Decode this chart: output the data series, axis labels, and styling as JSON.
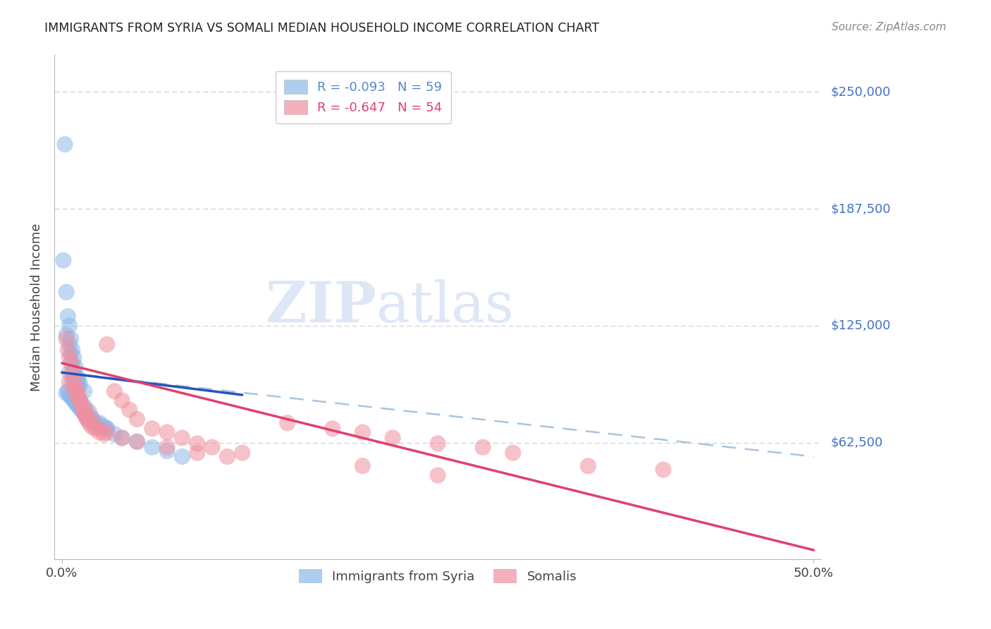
{
  "title": "IMMIGRANTS FROM SYRIA VS SOMALI MEDIAN HOUSEHOLD INCOME CORRELATION CHART",
  "source": "Source: ZipAtlas.com",
  "ylabel": "Median Household Income",
  "yticks": [
    0,
    62500,
    125000,
    187500,
    250000
  ],
  "ytick_labels": [
    "",
    "$62,500",
    "$125,000",
    "$187,500",
    "$250,000"
  ],
  "ylim": [
    0,
    270000
  ],
  "xlim": [
    -0.005,
    0.505
  ],
  "syria_color": "#8DB8E8",
  "somalia_color": "#F090A0",
  "syria_line_color": "#2255BB",
  "somalia_line_color": "#E04070",
  "dashed_line_color": "#A8C4E0",
  "legend_top": [
    {
      "label": "R = -0.093   N = 59",
      "color": "#5588CC"
    },
    {
      "label": "R = -0.647   N = 54",
      "color": "#E04070"
    }
  ],
  "legend_bottom": [
    "Immigrants from Syria",
    "Somalis"
  ],
  "syria_dots_x": [
    0.002,
    0.001,
    0.003,
    0.004,
    0.005,
    0.003,
    0.006,
    0.005,
    0.007,
    0.006,
    0.008,
    0.007,
    0.009,
    0.008,
    0.01,
    0.009,
    0.011,
    0.01,
    0.012,
    0.011,
    0.004,
    0.003,
    0.005,
    0.006,
    0.007,
    0.008,
    0.009,
    0.01,
    0.011,
    0.012,
    0.013,
    0.014,
    0.015,
    0.016,
    0.017,
    0.018,
    0.02,
    0.022,
    0.025,
    0.028,
    0.03,
    0.005,
    0.007,
    0.008,
    0.01,
    0.012,
    0.015,
    0.018,
    0.02,
    0.025,
    0.03,
    0.035,
    0.04,
    0.05,
    0.06,
    0.07,
    0.08,
    0.01,
    0.015
  ],
  "syria_dots_y": [
    222000,
    160000,
    143000,
    130000,
    125000,
    120000,
    118000,
    115000,
    112000,
    110000,
    108000,
    105000,
    103000,
    100000,
    98000,
    97000,
    96000,
    95000,
    94000,
    92000,
    90000,
    89000,
    88000,
    87000,
    86000,
    85000,
    84000,
    83000,
    82000,
    81000,
    80000,
    79000,
    78000,
    77000,
    76000,
    75000,
    74000,
    73000,
    72000,
    71000,
    70000,
    100000,
    95000,
    90000,
    88000,
    85000,
    82000,
    79000,
    76000,
    73000,
    70000,
    67000,
    65000,
    63000,
    60000,
    58000,
    55000,
    95000,
    90000
  ],
  "somalia_dots_x": [
    0.003,
    0.004,
    0.005,
    0.006,
    0.007,
    0.008,
    0.009,
    0.01,
    0.011,
    0.012,
    0.013,
    0.014,
    0.015,
    0.016,
    0.017,
    0.018,
    0.02,
    0.022,
    0.025,
    0.028,
    0.03,
    0.035,
    0.04,
    0.045,
    0.05,
    0.06,
    0.07,
    0.08,
    0.09,
    0.1,
    0.12,
    0.15,
    0.18,
    0.2,
    0.22,
    0.25,
    0.28,
    0.3,
    0.35,
    0.4,
    0.005,
    0.008,
    0.012,
    0.016,
    0.02,
    0.025,
    0.03,
    0.04,
    0.05,
    0.07,
    0.09,
    0.11,
    0.2,
    0.25
  ],
  "somalia_dots_y": [
    118000,
    112000,
    108000,
    105000,
    100000,
    96000,
    93000,
    90000,
    88000,
    85000,
    83000,
    80000,
    78000,
    76000,
    75000,
    73000,
    71000,
    70000,
    68000,
    67000,
    115000,
    90000,
    85000,
    80000,
    75000,
    70000,
    68000,
    65000,
    62000,
    60000,
    57000,
    73000,
    70000,
    68000,
    65000,
    62000,
    60000,
    57000,
    50000,
    48000,
    95000,
    90000,
    85000,
    80000,
    75000,
    70000,
    68000,
    65000,
    63000,
    60000,
    57000,
    55000,
    50000,
    45000
  ],
  "syria_trend_x": [
    0.0,
    0.12
  ],
  "syria_trend_y": [
    100000,
    88000
  ],
  "somalia_trend_x": [
    0.0,
    0.5
  ],
  "somalia_trend_y": [
    105000,
    5000
  ],
  "dashed_trend_x": [
    0.0,
    0.5
  ],
  "dashed_trend_y": [
    100000,
    55000
  ]
}
